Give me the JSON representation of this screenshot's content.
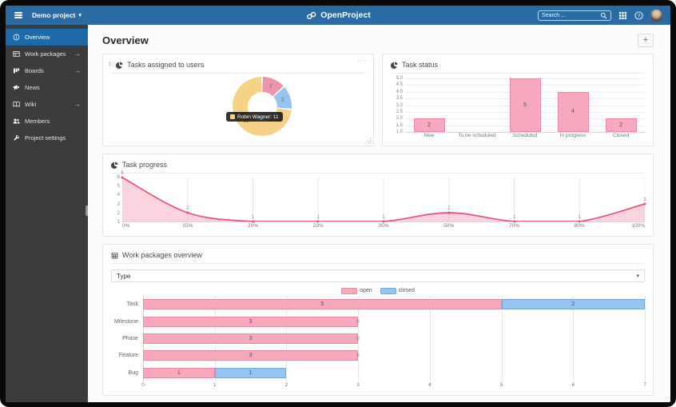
{
  "topbar": {
    "project_label": "Demo project",
    "logo_text": "OpenProject",
    "search_placeholder": "Search ..."
  },
  "glyphs": {
    "caret_down": "▾",
    "arrow_right": "→",
    "menu_dots": "···",
    "drag_handle": "⠿",
    "plus": "+"
  },
  "sidebar": {
    "items": [
      {
        "label": "Overview",
        "icon": "overview-info-icon",
        "active": true,
        "arrow": false
      },
      {
        "label": "Work packages",
        "icon": "work-packages-icon",
        "active": false,
        "arrow": true
      },
      {
        "label": "Boards",
        "icon": "boards-icon",
        "active": false,
        "arrow": true
      },
      {
        "label": "News",
        "icon": "news-icon",
        "active": false,
        "arrow": false
      },
      {
        "label": "Wiki",
        "icon": "wiki-icon",
        "active": false,
        "arrow": true
      },
      {
        "label": "Members",
        "icon": "members-icon",
        "active": false,
        "arrow": false
      },
      {
        "label": "Project settings",
        "icon": "settings-icon",
        "active": false,
        "arrow": false
      }
    ]
  },
  "page": {
    "title": "Overview"
  },
  "widgets": {
    "assigned": {
      "title": "Tasks assigned to users"
    },
    "status": {
      "title": "Task status"
    },
    "progress": {
      "title": "Task progress"
    },
    "wp": {
      "title": "Work packages overview",
      "filter_value": "Type"
    }
  },
  "chart_data": [
    {
      "type": "pie",
      "widget": "Tasks assigned to users",
      "segments": [
        {
          "label": "",
          "value": 2,
          "color": "#ef93ae"
        },
        {
          "label": "",
          "value": 2,
          "color": "#94c5ef"
        },
        {
          "label": "Robin Wagner",
          "value": 11,
          "color": "#f7d286"
        }
      ],
      "tooltip": {
        "label": "Robin Wagner",
        "value": 11,
        "swatch": "#f7d286"
      },
      "hole_ratio": 0.5
    },
    {
      "type": "bar",
      "widget": "Task status",
      "categories": [
        "New",
        "To be scheduled",
        "Scheduled",
        "In progress",
        "Closed"
      ],
      "values": [
        2,
        0,
        5,
        4,
        2
      ],
      "ylim": [
        1,
        5
      ],
      "yticks": [
        "5.0",
        "4.5",
        "4.0",
        "3.5",
        "3.0",
        "2.5",
        "2.0",
        "1.5",
        "1.0"
      ],
      "bar_fill": "#f6a9bd",
      "bar_border": "#ee86a6",
      "grid": true
    },
    {
      "type": "area",
      "widget": "Task progress",
      "x": [
        "0%",
        "15%",
        "20%",
        "23%",
        "35%",
        "50%",
        "70%",
        "80%",
        "100%"
      ],
      "values": [
        6,
        2,
        1,
        1,
        1,
        2,
        1,
        1,
        3
      ],
      "ylim": [
        1,
        6
      ],
      "yticks": [
        "6",
        "5",
        "4",
        "3",
        "2",
        "1"
      ],
      "line_color": "#e7537a",
      "fill_color": "rgba(231,83,122,0.25)",
      "grid": true
    },
    {
      "type": "bar",
      "orientation": "horizontal",
      "stacked": true,
      "widget": "Work packages overview",
      "categories": [
        "Task",
        "Milestone",
        "Phase",
        "Feature",
        "Bug"
      ],
      "series": [
        {
          "name": "open",
          "color": "#f6a9bd",
          "border": "#ee86a6",
          "values": [
            5,
            3,
            3,
            3,
            1
          ]
        },
        {
          "name": "closed",
          "color": "#94c5ef",
          "border": "#74a9da",
          "values": [
            2,
            0,
            0,
            0,
            1
          ]
        }
      ],
      "xlim": [
        0,
        7
      ],
      "xticks": [
        "0",
        "1",
        "2",
        "3",
        "4",
        "5",
        "6",
        "7"
      ],
      "legend_position": "top"
    }
  ]
}
